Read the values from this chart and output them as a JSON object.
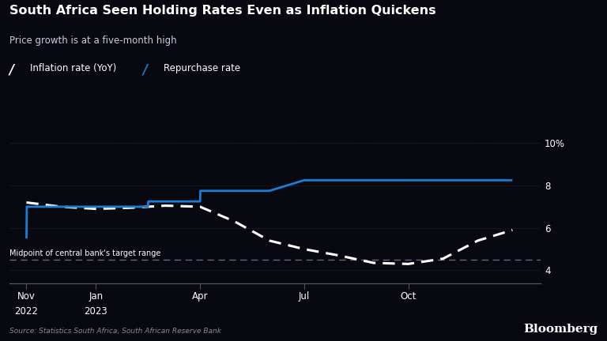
{
  "title": "South Africa Seen Holding Rates Even as Inflation Quickens",
  "subtitle": "Price growth is at a five-month high",
  "source": "Source: Statistics South Africa, South African Reserve Bank",
  "watermark": "Bloomberg",
  "background_color": "#080810",
  "text_color": "#ffffff",
  "ylim": [
    3.4,
    10.8
  ],
  "yticks": [
    4,
    6,
    8,
    10
  ],
  "ytick_labels": [
    "4",
    "6",
    "8",
    "10%"
  ],
  "midpoint_label": "Midpoint of central bank's target range",
  "midpoint_value": 4.5,
  "x_tick_positions": [
    0,
    2,
    5,
    8,
    11
  ],
  "x_tick_labels_top": [
    "Nov",
    "Jan",
    "Apr",
    "Jul",
    "Oct"
  ],
  "x_tick_labels_bot": [
    "2022",
    "2023",
    "",
    "",
    ""
  ],
  "inflation_x": [
    0,
    1,
    2,
    3,
    4,
    5,
    6,
    7,
    8,
    9,
    10,
    11,
    12,
    13,
    14
  ],
  "inflation_y": [
    7.2,
    7.0,
    6.9,
    6.95,
    7.05,
    7.0,
    6.3,
    5.4,
    5.0,
    4.7,
    4.35,
    4.3,
    4.55,
    5.4,
    5.9
  ],
  "repo_x": [
    0,
    0.01,
    1,
    2,
    3,
    3.5,
    3.51,
    4,
    5,
    5.01,
    6,
    7,
    8,
    9,
    10,
    11,
    12,
    13,
    14
  ],
  "repo_y": [
    5.5,
    7.0,
    7.0,
    7.0,
    7.0,
    7.0,
    7.25,
    7.25,
    7.25,
    7.75,
    7.75,
    7.75,
    8.25,
    8.25,
    8.25,
    8.25,
    8.25,
    8.25,
    8.25
  ],
  "dotted_grid_color": "#2a2a3a",
  "midpoint_line_color": "#666688",
  "bottom_spine_color": "#555566"
}
